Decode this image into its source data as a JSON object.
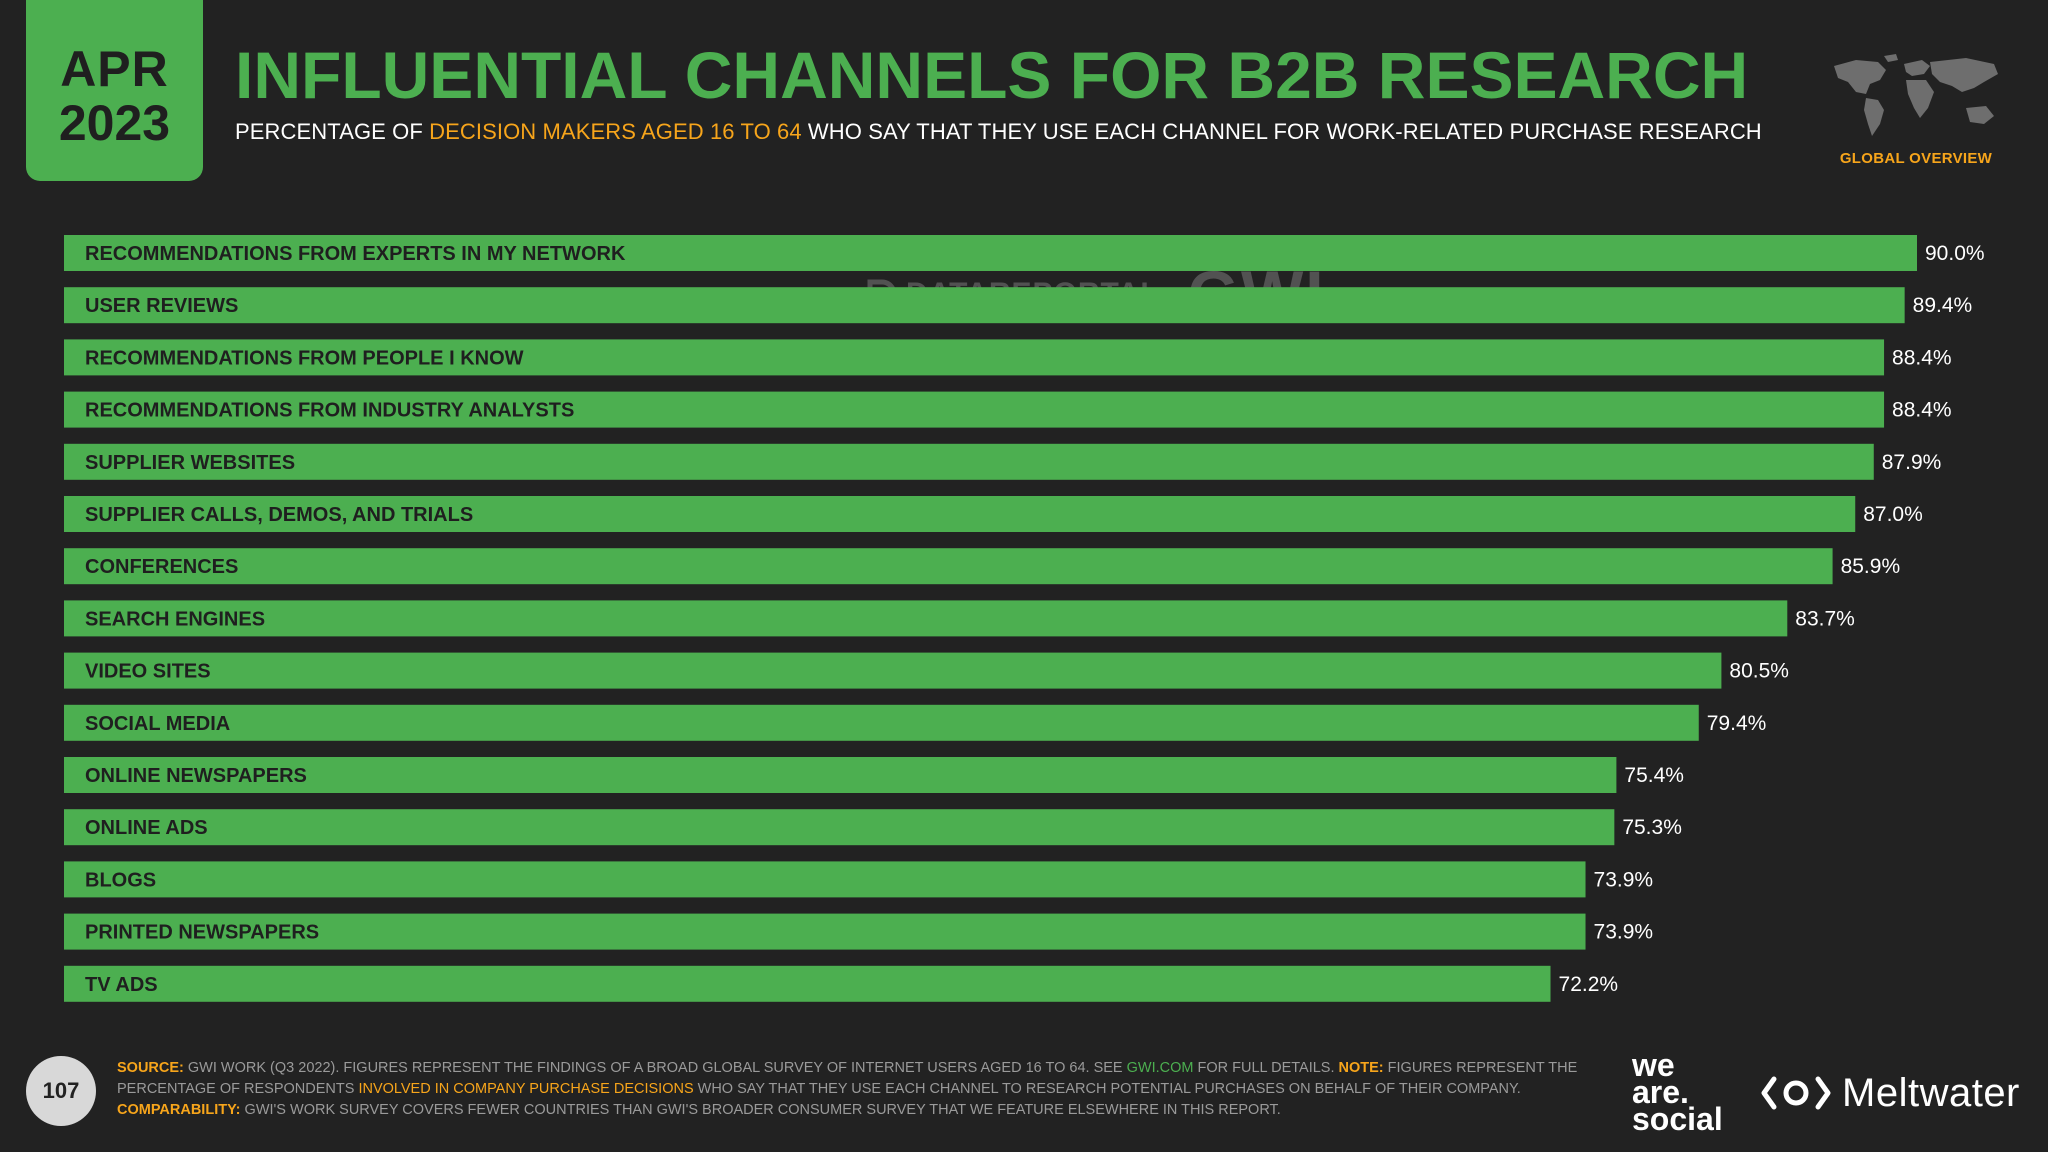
{
  "header": {
    "month": "APR",
    "year": "2023",
    "title": "INFLUENTIAL CHANNELS FOR B2B RESEARCH",
    "subtitle_pre": "PERCENTAGE OF ",
    "subtitle_highlight": "DECISION MAKERS AGED 16 TO 64",
    "subtitle_post": " WHO SAY THAT THEY USE EACH CHANNEL FOR WORK-RELATED PURCHASE RESEARCH",
    "region_label": "GLOBAL OVERVIEW"
  },
  "watermark": {
    "left": "DATAREPORTAL",
    "right": "GWI."
  },
  "colors": {
    "bar": "#4caf50",
    "accent": "#f7a51b",
    "background": "#222222",
    "label_text": "#1f1f1f"
  },
  "chart_data": {
    "type": "bar",
    "orientation": "horizontal",
    "categories": [
      "RECOMMENDATIONS FROM EXPERTS IN MY NETWORK",
      "USER REVIEWS",
      "RECOMMENDATIONS FROM PEOPLE I KNOW",
      "RECOMMENDATIONS FROM INDUSTRY ANALYSTS",
      "SUPPLIER WEBSITES",
      "SUPPLIER CALLS, DEMOS, AND TRIALS",
      "CONFERENCES",
      "SEARCH ENGINES",
      "VIDEO SITES",
      "SOCIAL MEDIA",
      "ONLINE NEWSPAPERS",
      "ONLINE ADS",
      "BLOGS",
      "PRINTED NEWSPAPERS",
      "TV ADS"
    ],
    "values": [
      90.0,
      89.4,
      88.4,
      88.4,
      87.9,
      87.0,
      85.9,
      83.7,
      80.5,
      79.4,
      75.4,
      75.3,
      73.9,
      73.9,
      72.2
    ],
    "value_labels": [
      "90.0%",
      "89.4%",
      "88.4%",
      "88.4%",
      "87.9%",
      "87.0%",
      "85.9%",
      "83.7%",
      "80.5%",
      "79.4%",
      "75.4%",
      "75.3%",
      "73.9%",
      "73.9%",
      "72.2%"
    ],
    "xlim": [
      0,
      100
    ],
    "grid": false,
    "legend": "none"
  },
  "footer": {
    "page_number": "107",
    "source_key": "SOURCE:",
    "source_text_1": " GWI WORK (Q3 2022). FIGURES REPRESENT THE FINDINGS OF A BROAD GLOBAL SURVEY OF INTERNET USERS AGED 16 TO 64. SEE ",
    "source_link": "GWI.COM",
    "source_text_2": " FOR FULL DETAILS. ",
    "note_key": "NOTE:",
    "note_text_1": " FIGURES REPRESENT THE PERCENTAGE OF RESPONDENTS ",
    "note_highlight": "INVOLVED IN COMPANY PURCHASE DECISIONS",
    "note_text_2": " WHO SAY THAT THEY USE EACH CHANNEL TO RESEARCH POTENTIAL PURCHASES ON BEHALF OF THEIR COMPANY.",
    "comparability_key": "COMPARABILITY:",
    "comparability_text": " GWI'S WORK SURVEY COVERS FEWER COUNTRIES THAN GWI'S BROADER CONSUMER SURVEY THAT WE FEATURE ELSEWHERE IN THIS REPORT.",
    "brand_was": [
      "we",
      "are.",
      "social"
    ],
    "brand_meltwater": "Meltwater"
  }
}
